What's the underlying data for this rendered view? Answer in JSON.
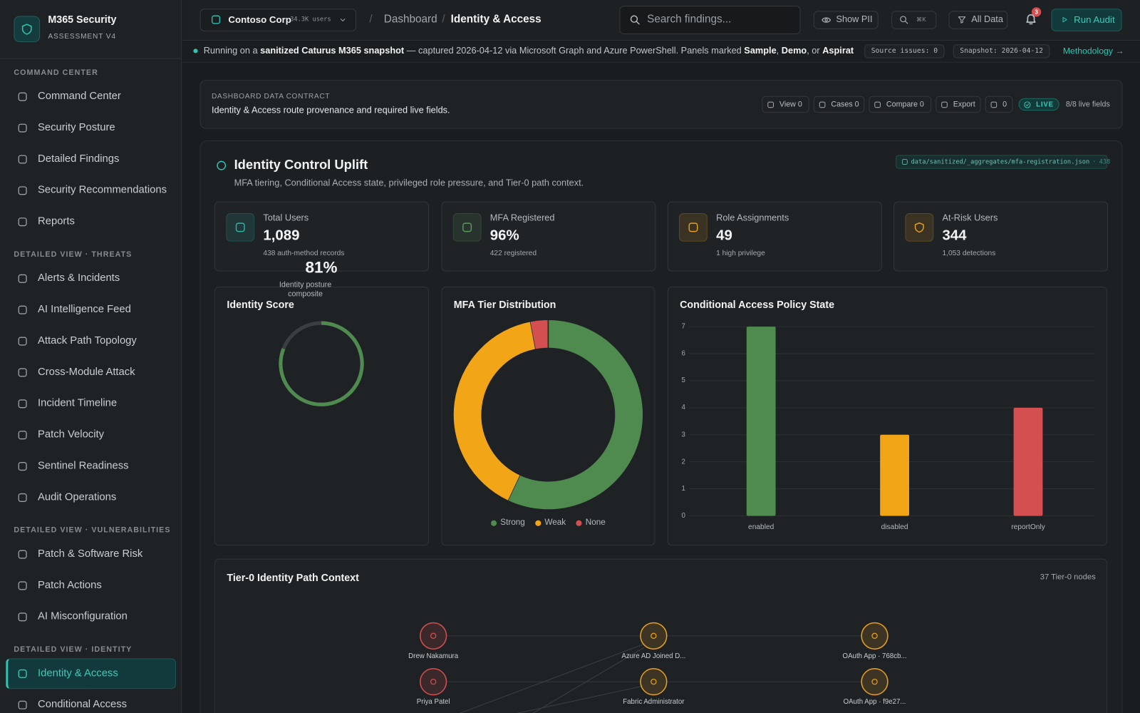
{
  "sidebar": {
    "brand": {
      "title": "M365 Security",
      "subtitle": "ASSESSMENT V4"
    },
    "active_section": 3,
    "active_index": 0,
    "sections": [
      {
        "heading": "COMMAND CENTER",
        "items": [
          "Command Center",
          "Security Posture",
          "Detailed Findings",
          "Security Recommendations",
          "Reports"
        ]
      },
      {
        "heading": "DETAILED VIEW · THREATS",
        "items": [
          "Alerts & Incidents",
          "AI Intelligence Feed",
          "Attack Path Topology",
          "Cross-Module Attack",
          "Incident Timeline",
          "Patch Velocity",
          "Sentinel Readiness",
          "Audit Operations"
        ]
      },
      {
        "heading": "DETAILED VIEW · VULNERABILITIES",
        "items": [
          "Patch & Software Risk",
          "Patch Actions",
          "AI Misconfiguration"
        ]
      },
      {
        "heading": "DETAILED VIEW · IDENTITY",
        "items": [
          "Identity & Access",
          "Conditional Access"
        ]
      }
    ]
  },
  "topbar": {
    "tenant": {
      "name": "Contoso Corp",
      "users": "34.3K users"
    },
    "separator": "/",
    "breadcrumb": [
      "Dashboard",
      "Identity & Access"
    ],
    "search_placeholder": "Search findings...",
    "show_pii": "Show PII",
    "shortcut": "⌘K",
    "filter": "All Data",
    "notifications": "3",
    "run": "Run Audit"
  },
  "banner": {
    "segments": [
      {
        "text": "Running on a ",
        "bold": false
      },
      {
        "text": "sanitized Caturus M365 snapshot",
        "bold": true
      },
      {
        "text": " — captured 2026-04-12 via Microsoft Graph and Azure PowerShell. Panels marked ",
        "bold": false
      },
      {
        "text": "Sample",
        "bold": true
      },
      {
        "text": ", ",
        "bold": false
      },
      {
        "text": "Demo",
        "bold": true
      },
      {
        "text": ", or ",
        "bold": false
      },
      {
        "text": "Aspiratio…",
        "bold": true
      }
    ],
    "badges": [
      "Source issues: 0",
      "Snapshot: 2026-04-12"
    ],
    "link": "Methodology →"
  },
  "contract": {
    "eyebrow": "DASHBOARD DATA CONTRACT",
    "text": "Identity & Access route provenance and required live fields.",
    "actions": [
      "View 0",
      "Cases 0",
      "Compare 0",
      "Export",
      "0"
    ],
    "live": "LIVE",
    "fields": "8/8 live fields"
  },
  "section": {
    "title": "Identity Control Uplift",
    "subtitle": "MFA tiering, Conditional Access state, privileged role pressure, and Tier-0 path context.",
    "source": {
      "path": "data/sanitized/_aggregates/mfa-registration.json",
      "separator": "·",
      "count": "438"
    }
  },
  "kpis": [
    {
      "label": "Total Users",
      "value": "1,089",
      "detail": "438 auth-method records",
      "color": "#2bb5a8"
    },
    {
      "label": "MFA Registered",
      "value": "96%",
      "detail": "422 registered",
      "color": "#5a9a5a"
    },
    {
      "label": "Role Assignments",
      "value": "49",
      "detail": "1 high privilege",
      "color": "#e8a020"
    },
    {
      "label": "At-Risk Users",
      "value": "344",
      "detail": "1,053 detections",
      "color": "#e8a020"
    }
  ],
  "chart_data": [
    {
      "type": "gauge",
      "title": "Identity Score",
      "values": [
        81
      ],
      "value_labels": [
        "81%"
      ],
      "caption": "Identity posture composite",
      "ylim": [
        0,
        100
      ],
      "color": "#4f8a4f",
      "track_color": "#3a3e41"
    },
    {
      "type": "donut",
      "title": "MFA Tier Distribution",
      "categories": [
        "Strong",
        "Weak",
        "None"
      ],
      "values": [
        57,
        40,
        3
      ],
      "colors": [
        "#4f8a4f",
        "#f2a516",
        "#d44f4f"
      ],
      "legend": "bottom"
    },
    {
      "type": "bar",
      "title": "Conditional Access Policy State",
      "categories": [
        "enabled",
        "disabled",
        "reportOnly"
      ],
      "values": [
        7,
        3,
        4
      ],
      "colors": [
        "#4f8a4f",
        "#f2a516",
        "#d44f4f"
      ],
      "ylim": [
        0,
        7
      ],
      "yticks": [
        0,
        1,
        2,
        3,
        4,
        5,
        6,
        7
      ],
      "grid": true
    }
  ],
  "tier0": {
    "title": "Tier-0 Identity Path Context",
    "count_label": "37 Tier-0 nodes",
    "nodes": [
      {
        "label": "Drew Nakamura",
        "color": "#d44f4f"
      },
      {
        "label": "Azure AD Joined D...",
        "color": "#e8a020"
      },
      {
        "label": "OAuth App · 768cb...",
        "color": "#e8a020"
      },
      {
        "label": "Priya Patel",
        "color": "#d44f4f"
      },
      {
        "label": "Fabric Administrator",
        "color": "#e8a020"
      },
      {
        "label": "OAuth App · f9e27...",
        "color": "#e8a020"
      }
    ]
  }
}
